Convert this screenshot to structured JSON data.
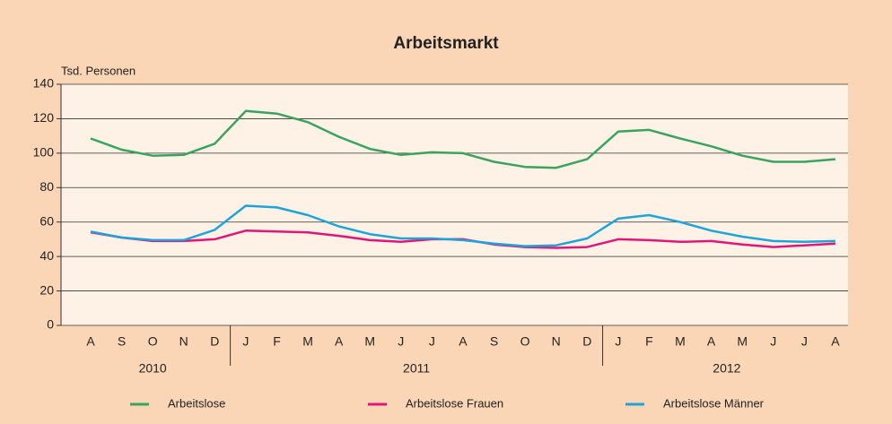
{
  "chart_data": {
    "type": "line",
    "title": "Arbeitsmarkt",
    "y_label": "Tsd. Personen",
    "categories": [
      "A",
      "S",
      "O",
      "N",
      "D",
      "J",
      "F",
      "M",
      "A",
      "M",
      "J",
      "J",
      "A",
      "S",
      "O",
      "N",
      "D",
      "J",
      "F",
      "M",
      "A",
      "M",
      "J",
      "J",
      "A"
    ],
    "groups": [
      {
        "label": "2010",
        "count": 5
      },
      {
        "label": "2011",
        "count": 12
      },
      {
        "label": "2012",
        "count": 8
      }
    ],
    "series": [
      {
        "name": "Arbeitslose",
        "color": "#3aa35f",
        "values": [
          108.5,
          102,
          98.5,
          99,
          105.5,
          124.5,
          123,
          118,
          109.5,
          102.5,
          99,
          100.5,
          100,
          95,
          92,
          91.5,
          96.5,
          112.5,
          113.5,
          108.5,
          104,
          98.5,
          95,
          95,
          96.5
        ]
      },
      {
        "name": "Arbeitslose Frauen",
        "color": "#e0177b",
        "values": [
          54,
          51,
          49,
          49,
          50,
          55,
          54.5,
          54,
          52,
          49.5,
          48.5,
          50,
          50,
          47,
          45.5,
          45,
          45.5,
          50,
          49.5,
          48.5,
          49,
          47,
          45.5,
          46.5,
          47.5
        ]
      },
      {
        "name": "Arbeitslose Männer",
        "color": "#1ea4d8",
        "values": [
          54.5,
          51,
          49.5,
          49.5,
          55.5,
          69.5,
          68.5,
          64,
          57.5,
          53,
          50.5,
          50.5,
          49.5,
          47.5,
          46,
          46.5,
          50.5,
          62,
          64,
          60,
          55,
          51.5,
          49,
          48.5,
          49
        ]
      }
    ],
    "ylim": [
      0,
      140
    ],
    "yticks": [
      0,
      20,
      40,
      60,
      80,
      100,
      120,
      140
    ],
    "grid": true
  }
}
